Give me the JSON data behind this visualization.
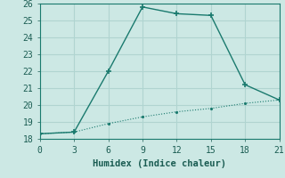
{
  "line1_x": [
    0,
    3,
    6,
    9,
    12,
    15,
    18,
    21
  ],
  "line1_y": [
    18.3,
    18.4,
    22.0,
    25.8,
    25.4,
    25.3,
    21.2,
    20.3
  ],
  "line2_x": [
    0,
    3,
    6,
    9,
    12,
    15,
    18,
    21
  ],
  "line2_y": [
    18.3,
    18.4,
    18.9,
    19.3,
    19.6,
    19.8,
    20.1,
    20.3
  ],
  "line_color": "#1a7a6e",
  "bg_color": "#cce8e4",
  "grid_color": "#b0d4d0",
  "xlabel": "Humidex (Indice chaleur)",
  "xlim": [
    0,
    21
  ],
  "ylim": [
    18,
    26
  ],
  "xticks": [
    0,
    3,
    6,
    9,
    12,
    15,
    18,
    21
  ],
  "yticks": [
    18,
    19,
    20,
    21,
    22,
    23,
    24,
    25,
    26
  ],
  "font_color": "#1a5c52",
  "font_family": "monospace",
  "xlabel_fontsize": 7.5,
  "tick_fontsize": 7
}
